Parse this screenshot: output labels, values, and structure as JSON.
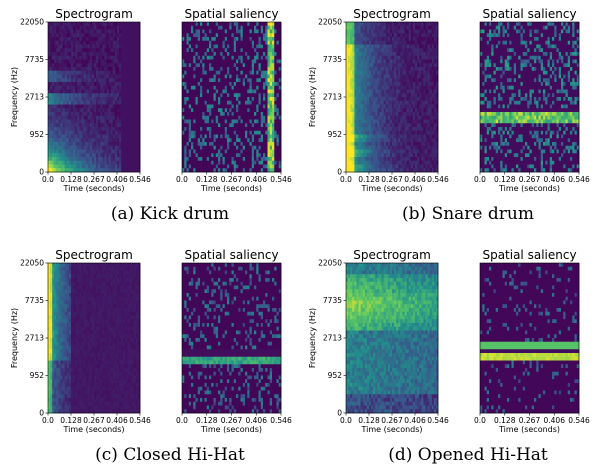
{
  "colors": {
    "background": "#440154",
    "low": "#482576",
    "mid": "#21908d",
    "high": "#5ec962",
    "peak": "#fde725"
  },
  "panel_titles": {
    "spectrogram": "Spectrogram",
    "saliency": "Spatial saliency"
  },
  "axes": {
    "xlabel": "Time (seconds)",
    "ylabel": "Frequency (Hz)",
    "x_ticks": [
      "0.0",
      "0.128",
      "0.267",
      "0.406",
      "0.546"
    ],
    "y_ticks": [
      "0",
      "952",
      "2713",
      "7735",
      "22050"
    ],
    "x_range": [
      0,
      0.546
    ],
    "y_range": [
      0,
      22050
    ],
    "y_scale": "log-like (mel)"
  },
  "chart_data": [
    {
      "type": "heatmap",
      "caption": "(a) Kick drum",
      "spectrogram": {
        "title": "Spectrogram",
        "description_of_energy": "strong energy at low frequencies near onset, decaying by ~0.4 s; faint bands around 2713 Hz",
        "onset_s": 0.0,
        "decay_end_s": 0.42,
        "active_band_hz": [
          0,
          952
        ]
      },
      "saliency": {
        "title": "Spatial saliency",
        "highlight": "vertical band at end of clip",
        "highlight_time_s": [
          0.5,
          0.546
        ]
      }
    },
    {
      "type": "heatmap",
      "caption": "(b) Snare drum",
      "spectrogram": {
        "title": "Spectrogram",
        "description_of_energy": "broadband burst at onset with energy across 952–7735 Hz, decaying by ~0.25 s",
        "onset_s": 0.0,
        "decay_end_s": 0.28,
        "active_band_hz": [
          0,
          7735
        ]
      },
      "saliency": {
        "title": "Spatial saliency",
        "highlight": "horizontal band around 952 Hz",
        "highlight_freq_hz": [
          952,
          1400
        ]
      }
    },
    {
      "type": "heatmap",
      "caption": "(c) Closed Hi-Hat",
      "spectrogram": {
        "title": "Spectrogram",
        "description_of_energy": "short high-frequency burst, stops at ~0.128 s",
        "onset_s": 0.0,
        "decay_end_s": 0.128,
        "active_band_hz": [
          952,
          22050
        ]
      },
      "saliency": {
        "title": "Spatial saliency",
        "highlight": "horizontal band around 952–1100 Hz",
        "highlight_freq_hz": [
          800,
          1200
        ]
      }
    },
    {
      "type": "heatmap",
      "caption": "(d) Opened Hi-Hat",
      "spectrogram": {
        "title": "Spectrogram",
        "description_of_energy": "sustained broadband energy over the whole clip, strongest around 7735 Hz",
        "onset_s": 0.0,
        "decay_end_s": 0.546,
        "active_band_hz": [
          952,
          22050
        ]
      },
      "saliency": {
        "title": "Spatial saliency",
        "highlight": "bright horizontal band around 952–1500 Hz",
        "highlight_freq_hz": [
          900,
          1500
        ]
      }
    }
  ]
}
